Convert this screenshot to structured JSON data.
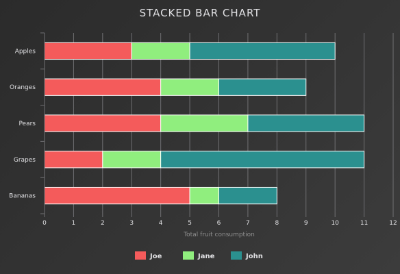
{
  "chart_data": {
    "type": "bar",
    "orientation": "horizontal",
    "stacked": true,
    "title": "STACKED BAR CHART",
    "xlabel": "Total fruit consumption",
    "ylabel": "",
    "categories": [
      "Apples",
      "Oranges",
      "Pears",
      "Grapes",
      "Bananas"
    ],
    "series": [
      {
        "name": "Joe",
        "color": "#f45b5b",
        "values": [
          3,
          4,
          4,
          2,
          5
        ]
      },
      {
        "name": "Jane",
        "color": "#90ee7e",
        "values": [
          2,
          2,
          3,
          2,
          1
        ]
      },
      {
        "name": "John",
        "color": "#2b908f",
        "values": [
          5,
          3,
          4,
          7,
          2
        ]
      }
    ],
    "xlim": [
      0,
      12
    ],
    "xticks": [
      "0",
      "1",
      "2",
      "3",
      "4",
      "5",
      "6",
      "7",
      "8",
      "9",
      "10",
      "11",
      "12"
    ],
    "grid": true,
    "legend_position": "bottom-center"
  }
}
